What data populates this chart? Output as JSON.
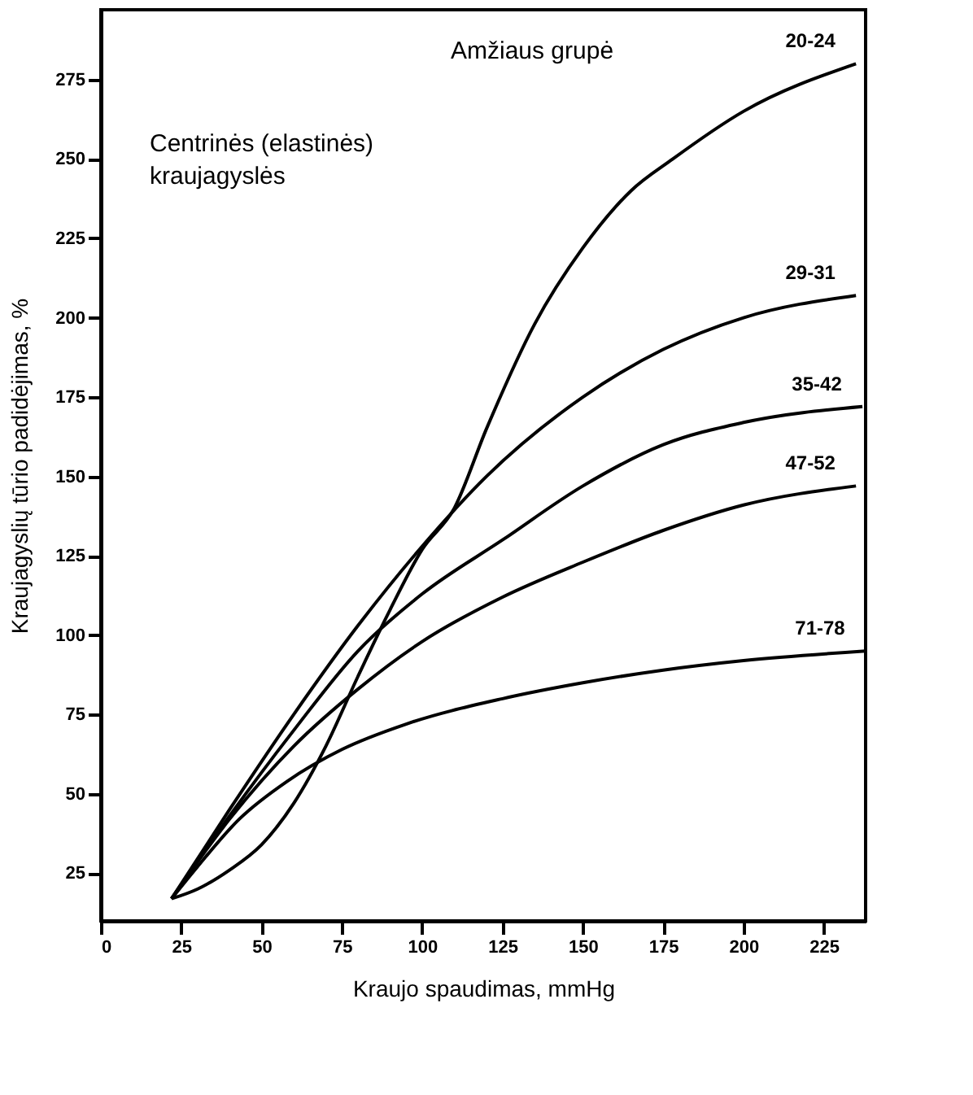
{
  "chart_data": {
    "type": "line",
    "xlabel": "Kraujo spaudimas, mmHg",
    "ylabel": "Kraujagyslių tūrio padidėjimas, %",
    "annotations": [
      "Amžiaus grupė",
      "Centrinės (elastinės) kraujagyslės"
    ],
    "xlim": [
      0,
      238
    ],
    "ylim": [
      10,
      297
    ],
    "xticks": [
      0,
      25,
      50,
      75,
      100,
      125,
      150,
      175,
      200,
      225
    ],
    "yticks": [
      25,
      50,
      75,
      100,
      125,
      150,
      175,
      200,
      225,
      250,
      275
    ],
    "grid": false,
    "legend": false,
    "marker": "none",
    "line_style": "solid",
    "series": [
      {
        "name": "20-24",
        "color": "#000000",
        "x": [
          22,
          30,
          40,
          50,
          60,
          70,
          80,
          90,
          100,
          110,
          120,
          135,
          150,
          165,
          178,
          200,
          235
        ],
        "values": [
          17,
          20,
          26,
          34,
          47,
          65,
          87,
          108,
          127,
          140,
          165,
          198,
          222,
          240,
          250,
          265,
          280
        ]
      },
      {
        "name": "29-31",
        "color": "#000000",
        "x": [
          22,
          40,
          60,
          80,
          100,
          120,
          150,
          175,
          200,
          235
        ],
        "values": [
          17,
          45,
          75,
          103,
          128,
          150,
          175,
          190,
          200,
          207
        ]
      },
      {
        "name": "35-42",
        "color": "#000000",
        "x": [
          22,
          40,
          60,
          80,
          100,
          125,
          150,
          175,
          200,
          237
        ],
        "values": [
          17,
          43,
          70,
          95,
          113,
          130,
          147,
          160,
          167,
          172
        ]
      },
      {
        "name": "47-52",
        "color": "#000000",
        "x": [
          22,
          40,
          60,
          80,
          100,
          125,
          150,
          175,
          200,
          235
        ],
        "values": [
          17,
          42,
          65,
          83,
          98,
          112,
          123,
          133,
          141,
          147
        ]
      },
      {
        "name": "71-78",
        "color": "#000000",
        "x": [
          22,
          30,
          43,
          58,
          75,
          95,
          125,
          150,
          175,
          200,
          238
        ],
        "values": [
          17,
          27,
          42,
          54,
          64,
          72,
          80,
          85,
          89,
          92,
          95
        ]
      }
    ]
  }
}
